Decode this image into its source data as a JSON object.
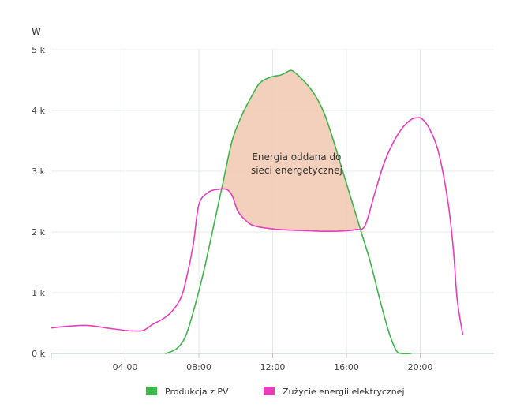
{
  "chart_data": {
    "type": "area",
    "ylabel": "W",
    "xlabel": "",
    "xlim": [
      0,
      24
    ],
    "ylim": [
      0,
      5000
    ],
    "x_ticks": [
      {
        "value": 4,
        "label": "04:00"
      },
      {
        "value": 8,
        "label": "08:00"
      },
      {
        "value": 12,
        "label": "12:00"
      },
      {
        "value": 16,
        "label": "16:00"
      },
      {
        "value": 20,
        "label": "20:00"
      }
    ],
    "y_ticks": [
      {
        "value": 0,
        "label": "0 k"
      },
      {
        "value": 1000,
        "label": "1 k"
      },
      {
        "value": 2000,
        "label": "2 k"
      },
      {
        "value": 3000,
        "label": "3 k"
      },
      {
        "value": 4000,
        "label": "4 k"
      },
      {
        "value": 5000,
        "label": "5 k"
      }
    ],
    "grid": true,
    "legend_position": "bottom-center",
    "series": [
      {
        "name": "Produkcja z PV",
        "color": "#3cb54a",
        "x": [
          6.2,
          6.8,
          7.3,
          7.8,
          8.3,
          8.8,
          9.3,
          9.8,
          10.3,
          10.8,
          11.3,
          11.9,
          12.4,
          12.7,
          13.0,
          13.3,
          13.8,
          14.3,
          14.8,
          15.3,
          15.8,
          16.3,
          16.8,
          17.3,
          17.8,
          18.3,
          18.7,
          19.0,
          19.5
        ],
        "values": [
          0,
          80,
          300,
          800,
          1400,
          2100,
          2800,
          3500,
          3900,
          4200,
          4450,
          4550,
          4580,
          4620,
          4660,
          4600,
          4450,
          4250,
          3950,
          3500,
          3000,
          2500,
          2000,
          1500,
          900,
          350,
          50,
          0,
          0
        ]
      },
      {
        "name": "Zużycie energii elektrycznej",
        "color": "#e93dbb",
        "x": [
          0,
          1,
          2,
          3,
          4,
          4.5,
          5,
          5.5,
          6,
          6.5,
          7,
          7.3,
          7.7,
          8,
          8.5,
          9,
          9.5,
          9.8,
          10.1,
          10.5,
          11,
          12,
          13,
          14,
          15,
          16,
          16.5,
          17,
          17.5,
          18,
          18.5,
          19,
          19.5,
          19.8,
          20.1,
          20.5,
          21,
          21.5,
          21.8,
          22.0,
          22.3
        ],
        "values": [
          420,
          450,
          460,
          420,
          380,
          370,
          380,
          480,
          560,
          680,
          900,
          1200,
          1800,
          2450,
          2650,
          2700,
          2700,
          2600,
          2350,
          2200,
          2100,
          2050,
          2030,
          2020,
          2010,
          2020,
          2040,
          2100,
          2600,
          3100,
          3450,
          3700,
          3850,
          3880,
          3860,
          3700,
          3300,
          2500,
          1700,
          900,
          320
        ]
      }
    ],
    "annotations": [
      {
        "text": [
          "Energia oddana do",
          "sieci energetycznej"
        ],
        "x": 13.0,
        "y": 3000
      }
    ],
    "fill_between": {
      "color": "#f2cbb4",
      "opacity": 0.9,
      "between": [
        "Produkcja z PV",
        "Zużycie energii elektrycznej"
      ]
    }
  }
}
